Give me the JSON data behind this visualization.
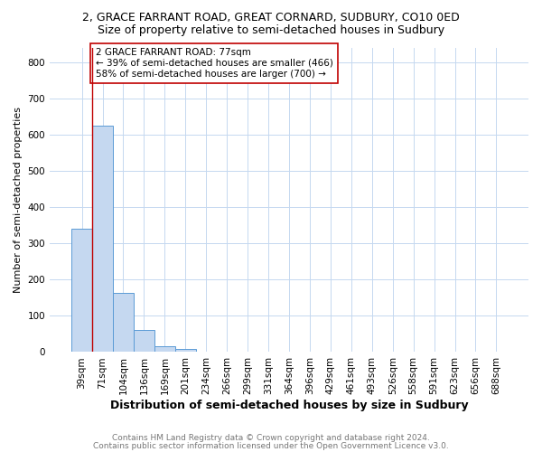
{
  "title": "2, GRACE FARRANT ROAD, GREAT CORNARD, SUDBURY, CO10 0ED",
  "subtitle": "Size of property relative to semi-detached houses in Sudbury",
  "xlabel": "Distribution of semi-detached houses by size in Sudbury",
  "ylabel": "Number of semi-detached properties",
  "categories": [
    "39sqm",
    "71sqm",
    "104sqm",
    "136sqm",
    "169sqm",
    "201sqm",
    "234sqm",
    "266sqm",
    "299sqm",
    "331sqm",
    "364sqm",
    "396sqm",
    "429sqm",
    "461sqm",
    "493sqm",
    "526sqm",
    "558sqm",
    "591sqm",
    "623sqm",
    "656sqm",
    "688sqm"
  ],
  "values": [
    340,
    625,
    162,
    60,
    16,
    8,
    0,
    0,
    0,
    0,
    0,
    0,
    0,
    0,
    0,
    0,
    0,
    0,
    0,
    0,
    0
  ],
  "bar_color": "#c5d8f0",
  "bar_edge_color": "#5b9bd5",
  "vline_color": "#c00000",
  "annotation_text": "2 GRACE FARRANT ROAD: 77sqm\n← 39% of semi-detached houses are smaller (466)\n58% of semi-detached houses are larger (700) →",
  "annotation_box_color": "#ffffff",
  "annotation_box_edge": "#c00000",
  "ylim": [
    0,
    840
  ],
  "yticks": [
    0,
    100,
    200,
    300,
    400,
    500,
    600,
    700,
    800
  ],
  "footer1": "Contains HM Land Registry data © Crown copyright and database right 2024.",
  "footer2": "Contains public sector information licensed under the Open Government Licence v3.0.",
  "background_color": "#ffffff",
  "grid_color": "#c5d8f0",
  "title_fontsize": 9,
  "subtitle_fontsize": 9,
  "xlabel_fontsize": 9,
  "ylabel_fontsize": 8,
  "tick_fontsize": 7.5,
  "annot_fontsize": 7.5,
  "footer_fontsize": 6.5,
  "footer_color": "#777777"
}
